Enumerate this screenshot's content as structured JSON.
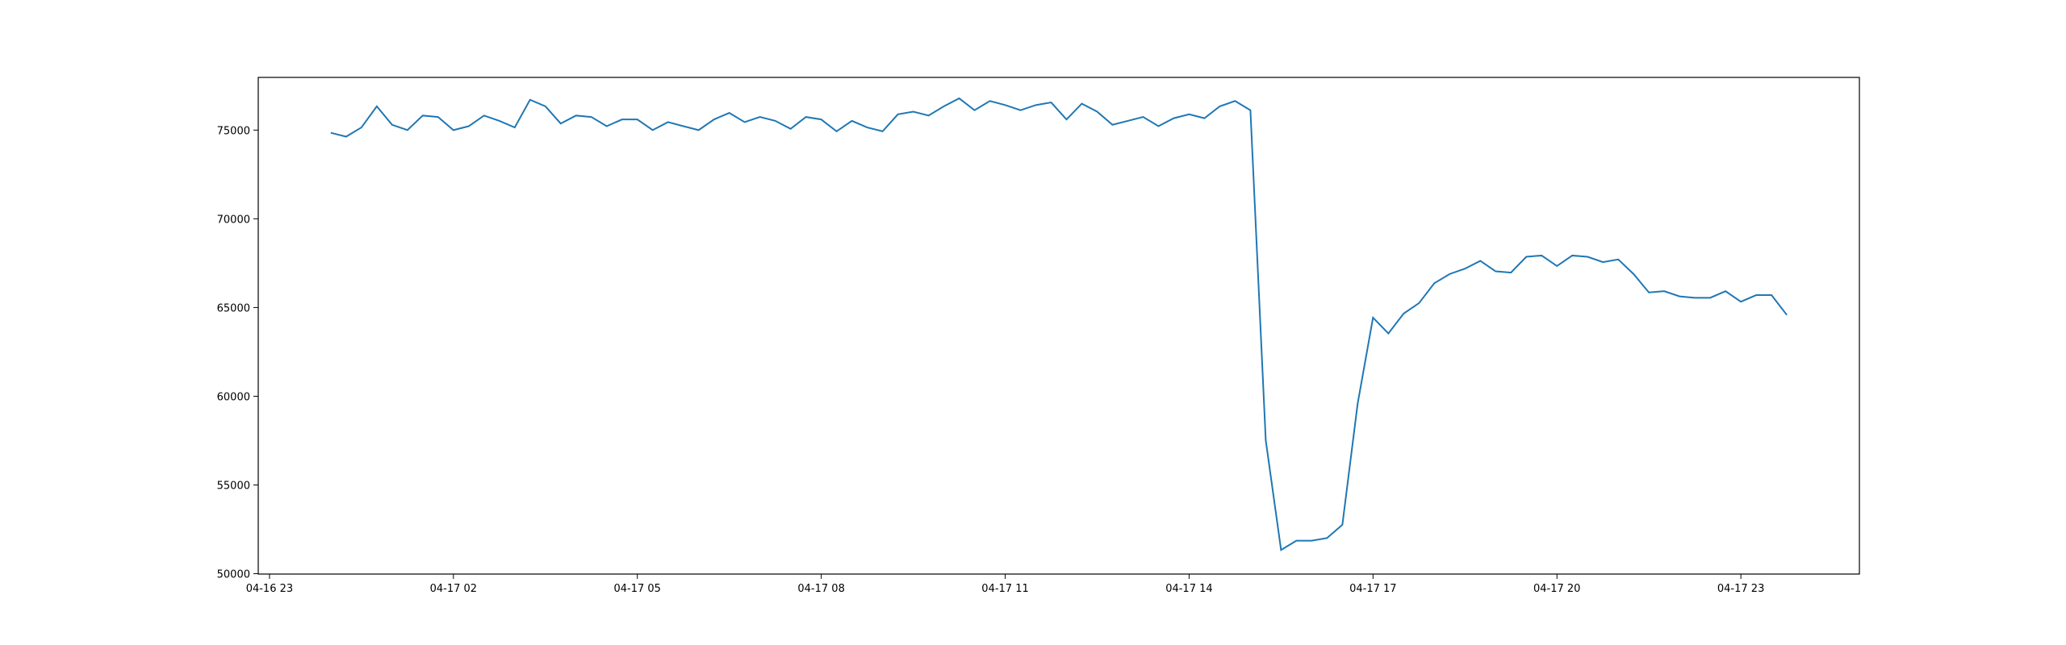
{
  "chart_data": {
    "type": "line",
    "x": [
      "04-17 00:00",
      "04-17 00:15",
      "04-17 00:30",
      "04-17 00:45",
      "04-17 01:00",
      "04-17 01:15",
      "04-17 01:30",
      "04-17 01:45",
      "04-17 02:00",
      "04-17 02:15",
      "04-17 02:30",
      "04-17 02:45",
      "04-17 03:00",
      "04-17 03:15",
      "04-17 03:30",
      "04-17 03:45",
      "04-17 04:00",
      "04-17 04:15",
      "04-17 04:30",
      "04-17 04:45",
      "04-17 05:00",
      "04-17 05:15",
      "04-17 05:30",
      "04-17 05:45",
      "04-17 06:00",
      "04-17 06:15",
      "04-17 06:30",
      "04-17 06:45",
      "04-17 07:00",
      "04-17 07:15",
      "04-17 07:30",
      "04-17 07:45",
      "04-17 08:00",
      "04-17 08:15",
      "04-17 08:30",
      "04-17 08:45",
      "04-17 09:00",
      "04-17 09:15",
      "04-17 09:30",
      "04-17 09:45",
      "04-17 10:00",
      "04-17 10:15",
      "04-17 10:30",
      "04-17 10:45",
      "04-17 11:00",
      "04-17 11:15",
      "04-17 11:30",
      "04-17 11:45",
      "04-17 12:00",
      "04-17 12:15",
      "04-17 12:30",
      "04-17 12:45",
      "04-17 13:00",
      "04-17 13:15",
      "04-17 13:30",
      "04-17 13:45",
      "04-17 14:00",
      "04-17 14:15",
      "04-17 14:30",
      "04-17 14:45",
      "04-17 15:00",
      "04-17 15:15",
      "04-17 15:30",
      "04-17 15:45",
      "04-17 16:00",
      "04-17 16:15",
      "04-17 16:30",
      "04-17 16:45",
      "04-17 17:00",
      "04-17 17:15",
      "04-17 17:30",
      "04-17 17:45",
      "04-17 18:00",
      "04-17 18:15",
      "04-17 18:30",
      "04-17 18:45",
      "04-17 19:00",
      "04-17 19:15",
      "04-17 19:30",
      "04-17 19:45",
      "04-17 20:00",
      "04-17 20:15",
      "04-17 20:30",
      "04-17 20:45",
      "04-17 21:00",
      "04-17 21:15",
      "04-17 21:30",
      "04-17 21:45",
      "04-17 22:00",
      "04-17 22:15",
      "04-17 22:30",
      "04-17 22:45",
      "04-17 23:00",
      "04-17 23:15",
      "04-17 23:30",
      "04-17 23:45"
    ],
    "values": [
      74850,
      74630,
      75150,
      76340,
      75300,
      75000,
      75820,
      75740,
      75000,
      75220,
      75820,
      75520,
      75150,
      76710,
      76340,
      75370,
      75820,
      75740,
      75220,
      75600,
      75600,
      75000,
      75450,
      75220,
      75000,
      75600,
      75970,
      75450,
      75740,
      75520,
      75070,
      75740,
      75600,
      74930,
      75520,
      75150,
      74930,
      75890,
      76040,
      75820,
      76340,
      76790,
      76120,
      76640,
      76410,
      76120,
      76410,
      76560,
      75600,
      76490,
      76040,
      75300,
      75520,
      75740,
      75220,
      75670,
      75890,
      75670,
      76340,
      76640,
      76120,
      57520,
      51340,
      51860,
      51860,
      52010,
      52760,
      59600,
      64430,
      63540,
      64660,
      65250,
      66370,
      66890,
      67190,
      67630,
      67040,
      66970,
      67860,
      67930,
      67340,
      67930,
      67860,
      67560,
      67710,
      66890,
      65850,
      65920,
      65630,
      65550,
      65550,
      65920,
      65330,
      65700,
      65700,
      64580
    ],
    "color": "#1f77b4",
    "xlim": [
      "04-16 22:49",
      "04-18 00:56"
    ],
    "xticks": [
      {
        "value": "04-16 23:00",
        "label": "04-16 23"
      },
      {
        "value": "04-17 02:00",
        "label": "04-17 02"
      },
      {
        "value": "04-17 05:00",
        "label": "04-17 05"
      },
      {
        "value": "04-17 08:00",
        "label": "04-17 08"
      },
      {
        "value": "04-17 11:00",
        "label": "04-17 11"
      },
      {
        "value": "04-17 14:00",
        "label": "04-17 14"
      },
      {
        "value": "04-17 17:00",
        "label": "04-17 17"
      },
      {
        "value": "04-17 20:00",
        "label": "04-17 20"
      },
      {
        "value": "04-17 23:00",
        "label": "04-17 23"
      }
    ],
    "ylim": [
      49980,
      77970
    ],
    "yticks": [
      50000,
      55000,
      60000,
      65000,
      70000,
      75000
    ]
  }
}
